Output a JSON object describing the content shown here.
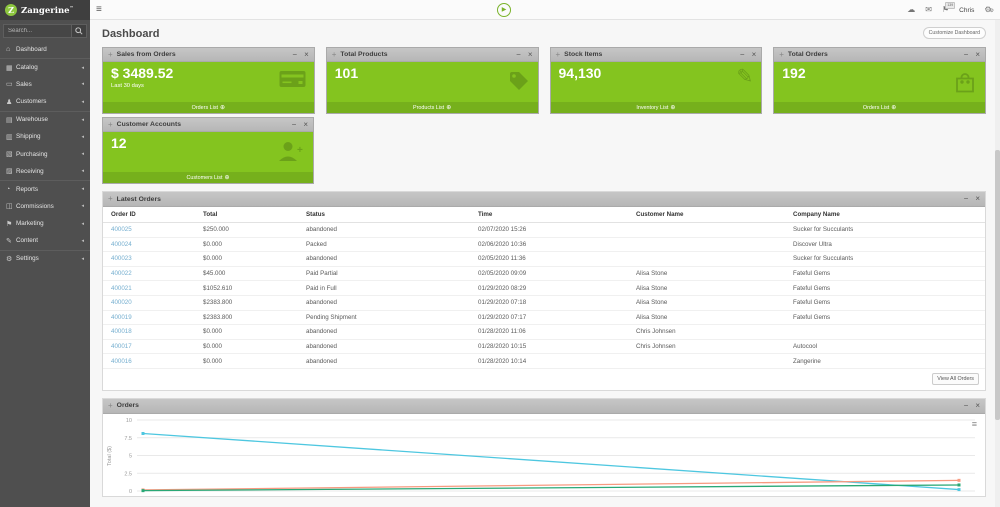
{
  "topbar": {
    "logo_text": "Zangerine",
    "logo_tm": "™",
    "logo_letter": "Z",
    "user_name": "Chris",
    "badge": "139"
  },
  "sidebar": {
    "search_placeholder": "Search...",
    "items": [
      {
        "label": "Dashboard",
        "icon": "dashboard-icon"
      },
      {
        "label": "Catalog",
        "icon": "catalog-icon"
      },
      {
        "label": "Sales",
        "icon": "sales-icon"
      },
      {
        "label": "Customers",
        "icon": "customers-icon"
      },
      {
        "label": "Warehouse",
        "icon": "warehouse-icon"
      },
      {
        "label": "Shipping",
        "icon": "shipping-icon"
      },
      {
        "label": "Purchasing",
        "icon": "purchasing-icon"
      },
      {
        "label": "Receiving",
        "icon": "receiving-icon"
      },
      {
        "label": "Reports",
        "icon": "reports-icon"
      },
      {
        "label": "Commissions",
        "icon": "commissions-icon"
      },
      {
        "label": "Marketing",
        "icon": "marketing-icon"
      },
      {
        "label": "Content",
        "icon": "content-icon"
      },
      {
        "label": "Settings",
        "icon": "settings-icon"
      }
    ]
  },
  "main": {
    "title": "Dashboard",
    "customize_button": "Customize Dashboard"
  },
  "widgets": [
    {
      "title": "Sales from Orders",
      "value": "$ 3489.52",
      "subtitle": "Last 30 days",
      "footer": "Orders List",
      "icon": "credit-card-icon"
    },
    {
      "title": "Total Products",
      "value": "101",
      "footer": "Products List",
      "icon": "tag-icon"
    },
    {
      "title": "Stock Items",
      "value": "94,130",
      "footer": "Inventory List",
      "icon": "pencil-icon"
    },
    {
      "title": "Total Orders",
      "value": "192",
      "footer": "Orders List",
      "icon": "shopping-bag-icon"
    },
    {
      "title": "Customer Accounts",
      "value": "12",
      "footer": "Customers List",
      "icon": "add-user-icon"
    }
  ],
  "latest_orders": {
    "title": "Latest Orders",
    "columns": [
      "Order ID",
      "Total",
      "Status",
      "Time",
      "Customer Name",
      "Company Name"
    ],
    "rows": [
      {
        "id": "400025",
        "total": "$250.000",
        "status": "abandoned",
        "time": "02/07/2020 15:26",
        "customer": "",
        "company": "Sucker for Succulants"
      },
      {
        "id": "400024",
        "total": "$0.000",
        "status": "Packed",
        "time": "02/06/2020 10:36",
        "customer": "",
        "company": "Discover Ultra"
      },
      {
        "id": "400023",
        "total": "$0.000",
        "status": "abandoned",
        "time": "02/05/2020 11:36",
        "customer": "",
        "company": "Sucker for Succulants"
      },
      {
        "id": "400022",
        "total": "$45.000",
        "status": "Paid Partial",
        "time": "02/05/2020 09:09",
        "customer": "Alisa Stone",
        "company": "Fateful Gems"
      },
      {
        "id": "400021",
        "total": "$1052.610",
        "status": "Paid in Full",
        "time": "01/29/2020 08:29",
        "customer": "Alisa Stone",
        "company": "Fateful Gems"
      },
      {
        "id": "400020",
        "total": "$2383.800",
        "status": "abandoned",
        "time": "01/29/2020 07:18",
        "customer": "Alisa Stone",
        "company": "Fateful Gems"
      },
      {
        "id": "400019",
        "total": "$2383.800",
        "status": "Pending Shipment",
        "time": "01/29/2020 07:17",
        "customer": "Alisa Stone",
        "company": "Fateful Gems"
      },
      {
        "id": "400018",
        "total": "$0.000",
        "status": "abandoned",
        "time": "01/28/2020 11:06",
        "customer": "Chris Johnsen",
        "company": ""
      },
      {
        "id": "400017",
        "total": "$0.000",
        "status": "abandoned",
        "time": "01/28/2020 10:15",
        "customer": "Chris Johnsen",
        "company": "Autocool"
      },
      {
        "id": "400016",
        "total": "$0.000",
        "status": "abandoned",
        "time": "01/28/2020 10:14",
        "customer": "",
        "company": "Zangerine"
      }
    ],
    "view_all_button": "View All Orders"
  },
  "chart_data": {
    "type": "line",
    "title": "Orders",
    "ylabel": "Total ($)",
    "ylim": [
      0,
      10
    ],
    "yticks": [
      0,
      2.5,
      5,
      7.5,
      10
    ],
    "grid": true,
    "x_axis_labels_visible": false,
    "legend": "none",
    "series": [
      {
        "name": "series-1",
        "color": "#4ec7e0",
        "values": [
          8.1,
          0.2
        ]
      },
      {
        "name": "series-2",
        "color": "#f79a80",
        "values": [
          0.15,
          1.5
        ]
      },
      {
        "name": "series-3",
        "color": "#2aa876",
        "values": [
          0.05,
          0.85
        ]
      }
    ]
  },
  "colors": {
    "accent_green": "#84c41f",
    "widget_footer_green": "#76b01c",
    "widget_icon_green": "#6ba119",
    "panel_header_gray": "#bdbdbd",
    "link_blue": "#74aecf",
    "sidebar_dark": "#4f4f4f",
    "logo_green": "#8dc63f"
  }
}
